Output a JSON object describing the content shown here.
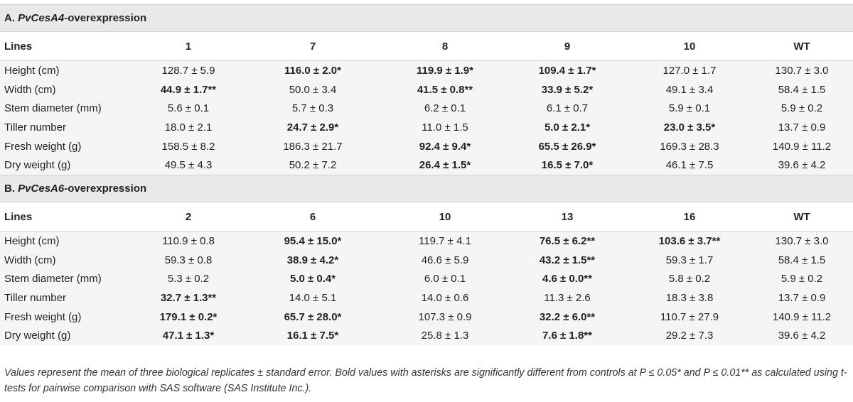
{
  "columns_label": "Lines",
  "sections": [
    {
      "prefix": "A. ",
      "gene": "PvCesA4",
      "suffix": "-overexpression",
      "lines": [
        "1",
        "7",
        "8",
        "9",
        "10",
        "WT"
      ],
      "rows": [
        {
          "label": "Height (cm)",
          "cells": [
            {
              "v": "128.7 ± 5.9",
              "b": false
            },
            {
              "v": "116.0 ± 2.0*",
              "b": true
            },
            {
              "v": "119.9 ± 1.9*",
              "b": true
            },
            {
              "v": "109.4 ± 1.7*",
              "b": true
            },
            {
              "v": "127.0 ± 1.7",
              "b": false
            },
            {
              "v": "130.7 ± 3.0",
              "b": false
            }
          ]
        },
        {
          "label": "Width (cm)",
          "cells": [
            {
              "v": "44.9 ± 1.7**",
              "b": true
            },
            {
              "v": "50.0 ± 3.4",
              "b": false
            },
            {
              "v": "41.5 ± 0.8**",
              "b": true
            },
            {
              "v": "33.9 ± 5.2*",
              "b": true
            },
            {
              "v": "49.1 ± 3.4",
              "b": false
            },
            {
              "v": "58.4 ± 1.5",
              "b": false
            }
          ]
        },
        {
          "label": "Stem diameter (mm)",
          "cells": [
            {
              "v": "5.6 ± 0.1",
              "b": false
            },
            {
              "v": "5.7 ± 0.3",
              "b": false
            },
            {
              "v": "6.2 ± 0.1",
              "b": false
            },
            {
              "v": "6.1 ± 0.7",
              "b": false
            },
            {
              "v": "5.9 ± 0.1",
              "b": false
            },
            {
              "v": "5.9 ± 0.2",
              "b": false
            }
          ]
        },
        {
          "label": "Tiller number",
          "cells": [
            {
              "v": "18.0 ± 2.1",
              "b": false
            },
            {
              "v": "24.7 ± 2.9*",
              "b": true
            },
            {
              "v": "11.0 ± 1.5",
              "b": false
            },
            {
              "v": "5.0 ± 2.1*",
              "b": true
            },
            {
              "v": "23.0 ± 3.5*",
              "b": true
            },
            {
              "v": "13.7 ± 0.9",
              "b": false
            }
          ]
        },
        {
          "label": "Fresh weight (g)",
          "cells": [
            {
              "v": "158.5 ± 8.2",
              "b": false
            },
            {
              "v": "186.3 ± 21.7",
              "b": false
            },
            {
              "v": "92.4 ± 9.4*",
              "b": true
            },
            {
              "v": "65.5 ± 26.9*",
              "b": true
            },
            {
              "v": "169.3 ± 28.3",
              "b": false
            },
            {
              "v": "140.9 ± 11.2",
              "b": false
            }
          ]
        },
        {
          "label": "Dry weight (g)",
          "cells": [
            {
              "v": "49.5 ± 4.3",
              "b": false
            },
            {
              "v": "50.2 ± 7.2",
              "b": false
            },
            {
              "v": "26.4 ± 1.5*",
              "b": true
            },
            {
              "v": "16.5 ± 7.0*",
              "b": true
            },
            {
              "v": "46.1 ± 7.5",
              "b": false
            },
            {
              "v": "39.6 ± 4.2",
              "b": false
            }
          ]
        }
      ]
    },
    {
      "prefix": "B. ",
      "gene": "PvCesA6",
      "suffix": "-overexpression",
      "lines": [
        "2",
        "6",
        "10",
        "13",
        "16",
        "WT"
      ],
      "rows": [
        {
          "label": "Height (cm)",
          "cells": [
            {
              "v": "110.9 ± 0.8",
              "b": false
            },
            {
              "v": "95.4 ± 15.0*",
              "b": true
            },
            {
              "v": "119.7 ± 4.1",
              "b": false
            },
            {
              "v": "76.5 ± 6.2**",
              "b": true
            },
            {
              "v": "103.6 ± 3.7**",
              "b": true
            },
            {
              "v": "130.7 ± 3.0",
              "b": false
            }
          ]
        },
        {
          "label": "Width (cm)",
          "cells": [
            {
              "v": "59.3 ± 0.8",
              "b": false
            },
            {
              "v": "38.9 ± 4.2*",
              "b": true
            },
            {
              "v": "46.6 ± 5.9",
              "b": false
            },
            {
              "v": "43.2 ± 1.5**",
              "b": true
            },
            {
              "v": "59.3 ± 1.7",
              "b": false
            },
            {
              "v": "58.4 ± 1.5",
              "b": false
            }
          ]
        },
        {
          "label": "Stem diameter (mm)",
          "cells": [
            {
              "v": "5.3 ± 0.2",
              "b": false
            },
            {
              "v": "5.0 ± 0.4*",
              "b": true
            },
            {
              "v": "6.0 ± 0.1",
              "b": false
            },
            {
              "v": "4.6 ± 0.0**",
              "b": true
            },
            {
              "v": "5.8 ± 0.2",
              "b": false
            },
            {
              "v": "5.9 ± 0.2",
              "b": false
            }
          ]
        },
        {
          "label": "Tiller number",
          "cells": [
            {
              "v": "32.7 ± 1.3**",
              "b": true
            },
            {
              "v": "14.0 ± 5.1",
              "b": false
            },
            {
              "v": "14.0 ± 0.6",
              "b": false
            },
            {
              "v": "11.3 ± 2.6",
              "b": false
            },
            {
              "v": "18.3 ± 3.8",
              "b": false
            },
            {
              "v": "13.7 ± 0.9",
              "b": false
            }
          ]
        },
        {
          "label": "Fresh weight (g)",
          "cells": [
            {
              "v": "179.1 ± 0.2*",
              "b": true
            },
            {
              "v": "65.7 ± 28.0*",
              "b": true
            },
            {
              "v": "107.3 ± 0.9",
              "b": false
            },
            {
              "v": "32.2 ± 6.0**",
              "b": true
            },
            {
              "v": "110.7 ± 27.9",
              "b": false
            },
            {
              "v": "140.9 ± 11.2",
              "b": false
            }
          ]
        },
        {
          "label": "Dry weight (g)",
          "cells": [
            {
              "v": "47.1 ± 1.3*",
              "b": true
            },
            {
              "v": "16.1 ± 7.5*",
              "b": true
            },
            {
              "v": "25.8 ± 1.3",
              "b": false
            },
            {
              "v": "7.6 ± 1.8**",
              "b": true
            },
            {
              "v": "29.2 ± 7.3",
              "b": false
            },
            {
              "v": "39.6 ± 4.2",
              "b": false
            }
          ]
        }
      ]
    }
  ],
  "footnote": "Values represent the mean of three biological replicates ± standard error. Bold values with asterisks are significantly different from controls at P ≤ 0.05* and P ≤ 0.01** as calculated using t-tests for pairwise comparison with SAS software (SAS Institute Inc.)."
}
